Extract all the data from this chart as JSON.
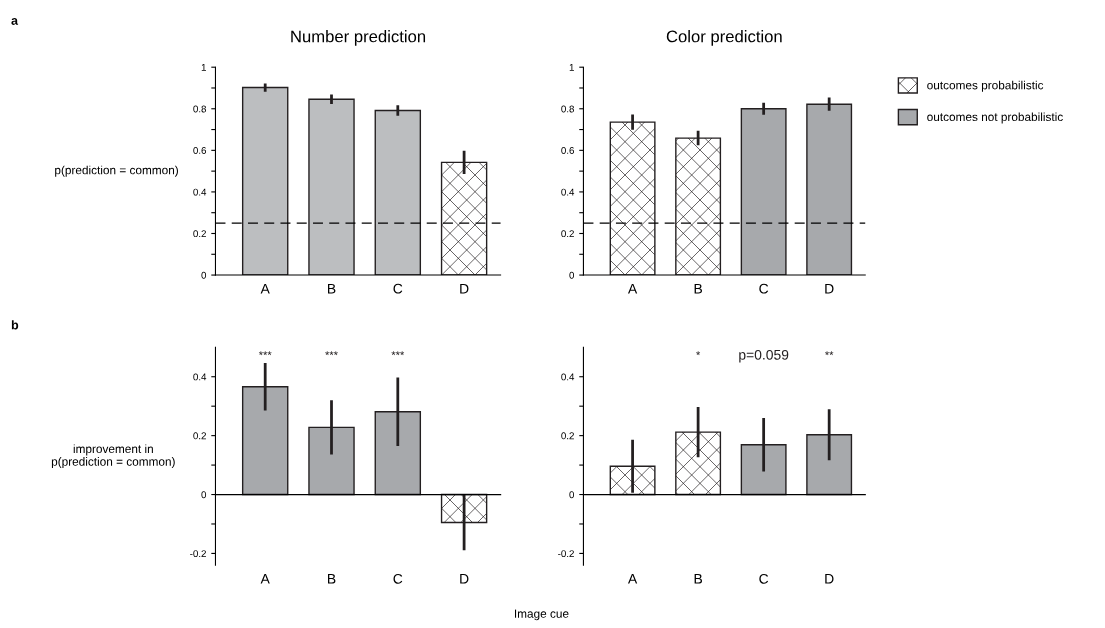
{
  "chart_data": [
    {
      "type": "bar",
      "title": "Number prediction",
      "ylabel": "p(prediction = common)",
      "categories": [
        "A",
        "B",
        "C",
        "D"
      ],
      "series": [
        {
          "color": "#231f20",
          "values": [
            null,
            null,
            null,
            0.542
          ],
          "errors": [
            null,
            null,
            null,
            0.056
          ]
        },
        {
          "color": "#bcbec0",
          "values": [
            0.902,
            0.846,
            0.792,
            null
          ],
          "errors": [
            0.02,
            0.023,
            0.025,
            null
          ]
        }
      ],
      "ylim": [
        0,
        1
      ],
      "yticks": [
        0,
        {
          "value": 0.1,
          "label": null
        },
        0.2,
        {
          "value": 0.3,
          "label": null
        },
        0.4,
        {
          "value": 0.5,
          "label": null
        },
        0.6,
        {
          "value": 0.7,
          "label": null
        },
        0.8,
        {
          "value": 0.9,
          "label": null
        },
        1
      ],
      "ref_lines": [
        {
          "axis": "y",
          "value": 0.25,
          "line_style": "dashed",
          "color": "#000000"
        }
      ],
      "annotations": [
        "a"
      ],
      "grid": false
    },
    {
      "type": "bar",
      "title": "Color prediction",
      "categories": [
        "A",
        "B",
        "C",
        "D"
      ],
      "series": [
        {
          "name": "outcomes probabilistic",
          "color": "#231f20",
          "values": [
            0.736,
            0.659,
            null,
            null
          ],
          "errors": [
            0.037,
            0.035,
            null,
            null
          ]
        },
        {
          "name": "outcomes not probabilistic",
          "color": "#a7a9ac",
          "values": [
            null,
            null,
            0.8,
            0.822
          ],
          "errors": [
            null,
            null,
            0.029,
            0.032
          ]
        }
      ],
      "ylim": [
        0,
        1
      ],
      "yticks": [
        0,
        {
          "value": 0.1,
          "label": null
        },
        0.2,
        {
          "value": 0.3,
          "label": null
        },
        0.4,
        {
          "value": 0.5,
          "label": null
        },
        0.6,
        {
          "value": 0.7,
          "label": null
        },
        0.8,
        {
          "value": 0.9,
          "label": null
        },
        1
      ],
      "ref_lines": [
        {
          "axis": "y",
          "value": 0.25,
          "line_style": "dashed",
          "color": "#000000"
        }
      ],
      "legend": "right",
      "grid": false
    },
    {
      "type": "bar",
      "ylabel": "improvement in\np(prediction = common)",
      "xlabel": "Image cue",
      "categories": [
        "A",
        "B",
        "C",
        "D"
      ],
      "series": [
        {
          "color": "#231f20",
          "values": [
            null,
            null,
            null,
            -0.095
          ],
          "errors": [
            null,
            null,
            null,
            0.094
          ]
        },
        {
          "color": "#a7a9ac",
          "values": [
            0.366,
            0.228,
            0.281,
            null
          ],
          "errors": [
            0.081,
            0.092,
            0.116,
            null
          ]
        }
      ],
      "ylim": [
        -0.24,
        0.5
      ],
      "yticks": [
        -0.2,
        {
          "value": -0.1,
          "label": null
        },
        0,
        {
          "value": 0.1,
          "label": null
        },
        0.2,
        {
          "value": 0.3,
          "label": null
        },
        0.4
      ],
      "ref_lines": [
        {
          "axis": "y",
          "value": 0,
          "line_style": "solid",
          "color": "#000000"
        }
      ],
      "annotations": [
        "b",
        "***",
        "***",
        "***"
      ],
      "grid": false
    },
    {
      "type": "bar",
      "categories": [
        "A",
        "B",
        "C",
        "D"
      ],
      "series": [
        {
          "color": "#231f20",
          "values": [
            0.096,
            0.212,
            null,
            null
          ],
          "errors": [
            0.09,
            0.085,
            null,
            null
          ]
        },
        {
          "color": "#a7a9ac",
          "values": [
            null,
            null,
            0.169,
            0.203
          ],
          "errors": [
            null,
            null,
            0.091,
            0.087
          ]
        }
      ],
      "ylim": [
        -0.24,
        0.5
      ],
      "yticks": [
        -0.2,
        {
          "value": -0.1,
          "label": null
        },
        0,
        {
          "value": 0.1,
          "label": null
        },
        0.2,
        {
          "value": 0.3,
          "label": null
        },
        0.4
      ],
      "ref_lines": [
        {
          "axis": "y",
          "value": 0,
          "line_style": "solid",
          "color": "#000000"
        }
      ],
      "annotations": [
        "*",
        "p=0.059",
        "**"
      ],
      "grid": false
    }
  ]
}
